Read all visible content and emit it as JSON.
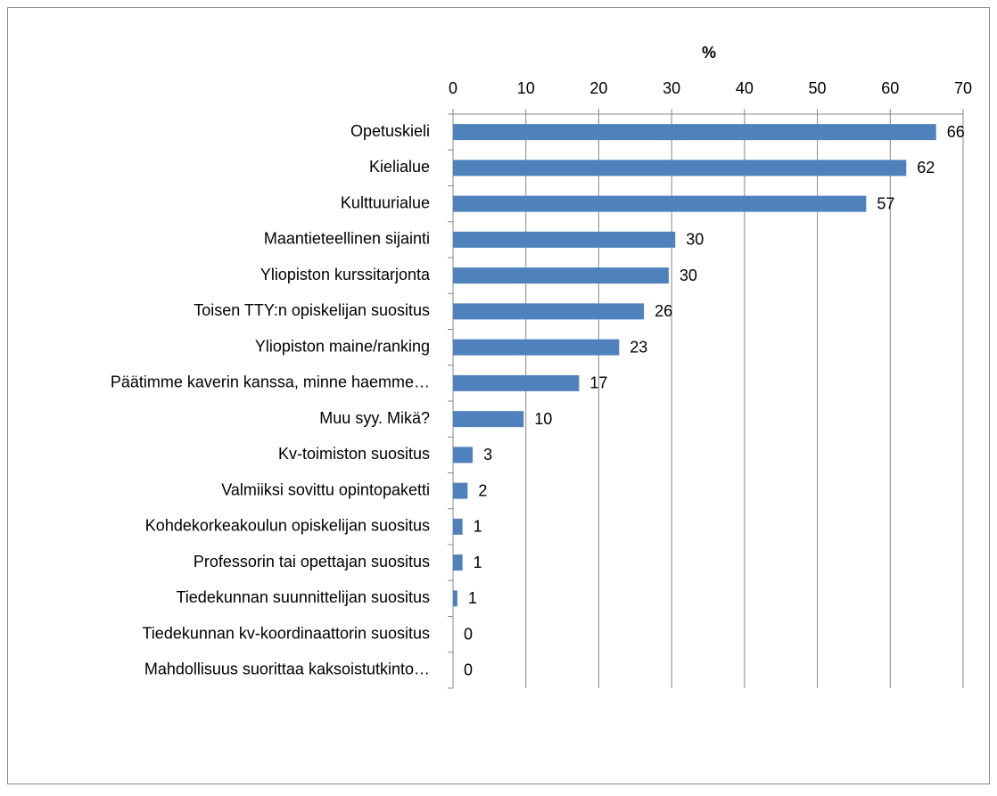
{
  "chart_data": {
    "type": "barh",
    "xlabel": "%",
    "categories": [
      "Opetuskieli",
      "Kielialue",
      "Kulttuurialue",
      "Maantieteellinen sijainti",
      "Yliopiston kurssitarjonta",
      "Toisen TTY:n opiskelijan suositus",
      "Yliopiston maine/ranking",
      "Päätimme kaverin kanssa, minne haemme…",
      "Muu syy. Mikä?",
      "Kv-toimiston suositus",
      "Valmiiksi sovittu opintopaketti",
      "Kohdekorkeakoulun opiskelijan suositus",
      "Professorin tai opettajan suositus",
      "Tiedekunnan suunnittelijan suositus",
      "Tiedekunnan kv-koordinaattorin suositus",
      "Mahdollisuus suorittaa kaksoistutkinto…"
    ],
    "values": [
      66.3,
      62.2,
      56.7,
      30.5,
      29.6,
      26.2,
      22.8,
      17.3,
      9.7,
      2.7,
      2.0,
      1.3,
      1.3,
      0.6,
      0,
      0
    ],
    "value_labels": [
      "66",
      "62",
      "57",
      "30",
      "30",
      "26",
      "23",
      "17",
      "10",
      "3",
      "2",
      "1",
      "1",
      "1",
      "0",
      "0"
    ],
    "color": "#4f81bd",
    "xlim": [
      0,
      70
    ],
    "xticks": [
      0,
      10,
      20,
      30,
      40,
      50,
      60,
      70
    ],
    "grid": true
  }
}
